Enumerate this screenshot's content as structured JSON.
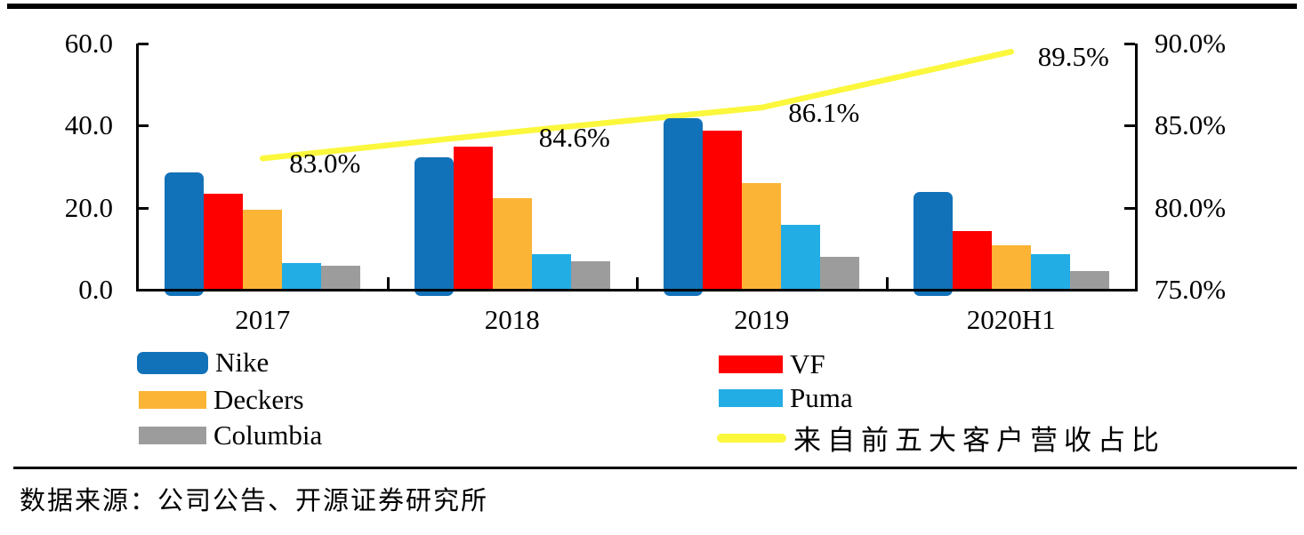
{
  "chart_data": {
    "type": "bar",
    "title": "",
    "categories": [
      "2017",
      "2018",
      "2019",
      "2020H1"
    ],
    "series": [
      {
        "name": "Nike",
        "color": "#1272B9",
        "values": [
          28.5,
          32.2,
          41.8,
          23.9
        ]
      },
      {
        "name": "VF",
        "color": "#FE0000",
        "values": [
          23.3,
          34.9,
          38.7,
          14.4
        ]
      },
      {
        "name": "Deckers",
        "color": "#FBB435",
        "values": [
          19.5,
          22.3,
          26.0,
          10.8
        ]
      },
      {
        "name": "Puma",
        "color": "#22ADE5",
        "values": [
          6.5,
          8.7,
          15.8,
          8.7
        ]
      },
      {
        "name": "Columbia",
        "color": "#9C9C9C",
        "values": [
          5.8,
          7.0,
          8.1,
          4.6
        ]
      }
    ],
    "line_series": {
      "name": "来自前五大客户营收占比",
      "type": "line",
      "color": "#FBF73C",
      "values": [
        83.0,
        84.6,
        86.1,
        89.5
      ],
      "labels": [
        "83.0%",
        "84.6%",
        "86.1%",
        "89.5%"
      ]
    },
    "left_axis": {
      "ticks": [
        "60.0",
        "40.0",
        "20.0",
        "0.0"
      ],
      "min": 0,
      "max": 60
    },
    "right_axis": {
      "ticks": [
        "90.0%",
        "85.0%",
        "80.0%",
        "75.0%"
      ],
      "min": 75,
      "max": 90
    },
    "grid": "off",
    "legend_position": "bottom"
  },
  "source_note": "数据来源：公司公告、开源证券研究所"
}
